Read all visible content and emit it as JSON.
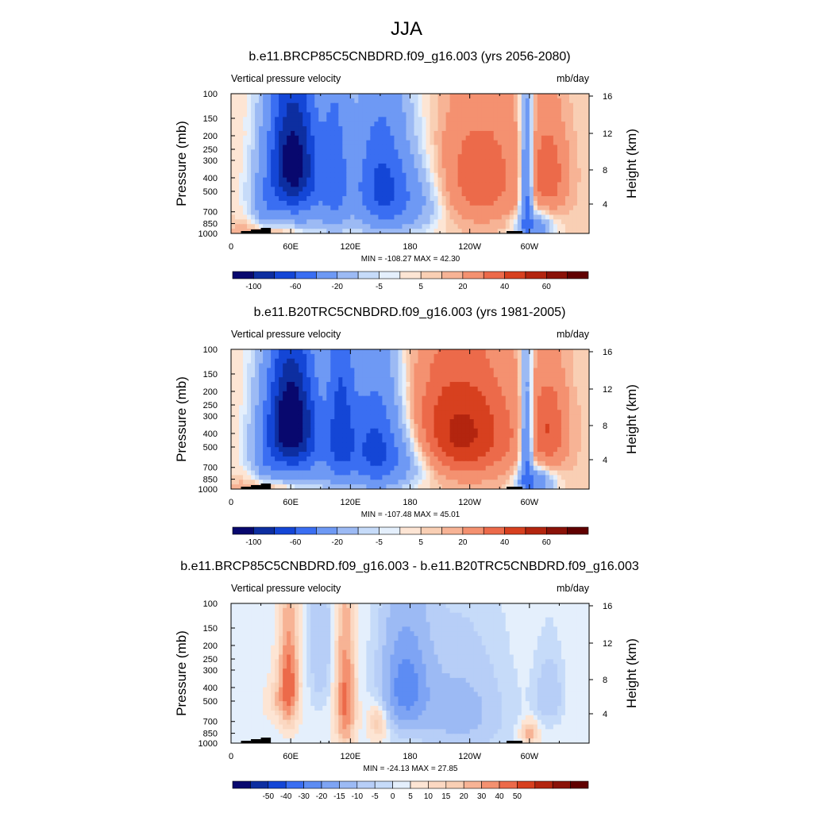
{
  "title": "JJA",
  "chart_data": [
    {
      "type": "heatmap",
      "title": "b.e11.BRCP85C5CNBDRD.f09_g16.003 (yrs 2056-2080)",
      "left_label": "Vertical pressure velocity",
      "right_label": "mb/day",
      "ylabel": "Pressure (mb)",
      "ylabel_right": "Height (km)",
      "x_ticks": [
        "0",
        "60E",
        "120E",
        "180",
        "120W",
        "60W"
      ],
      "y_ticks": [
        "100",
        "150",
        "200",
        "250",
        "300",
        "400",
        "500",
        "700",
        "850",
        "1000"
      ],
      "y_right_ticks": [
        "16",
        "12",
        "8",
        "4"
      ],
      "stats": "MIN = -108.27  MAX =  42.30",
      "colorbar_labels": [
        "-100",
        "-60",
        "-20",
        "-5",
        "5",
        "20",
        "40",
        "60"
      ],
      "colorbar_colors": [
        "#08086e",
        "#0d2ea0",
        "#1446d6",
        "#3a6ef2",
        "#6e99f4",
        "#9cbaf4",
        "#c6dbf9",
        "#e4effc",
        "#fde5d4",
        "#f9cfb4",
        "#f7b395",
        "#f49170",
        "#ec6a4a",
        "#d7401f",
        "#b3250f",
        "#8a1208",
        "#600000"
      ],
      "features": [
        {
          "lon": 40,
          "lev": 1000,
          "w": 32,
          "h": 220,
          "v": 16
        },
        {
          "lon": 35,
          "lev": 700,
          "w": 12,
          "h": 260,
          "v": -18
        },
        {
          "lon": 62,
          "lev": 280,
          "w": 24,
          "h": 300,
          "v": -95
        },
        {
          "lon": 65,
          "lev": 550,
          "w": 40,
          "h": 420,
          "v": -38
        },
        {
          "lon": 105,
          "lev": 350,
          "w": 14,
          "h": 500,
          "v": -40
        },
        {
          "lon": 150,
          "lev": 450,
          "w": 28,
          "h": 450,
          "v": -65
        },
        {
          "lon": 185,
          "lev": 600,
          "w": 30,
          "h": 350,
          "v": -25
        },
        {
          "lon": 250,
          "lev": 400,
          "w": 45,
          "h": 380,
          "v": 24
        },
        {
          "lon": 297,
          "lev": 500,
          "w": 6,
          "h": 500,
          "v": -55
        },
        {
          "lon": 305,
          "lev": 900,
          "w": 18,
          "h": 200,
          "v": -35
        },
        {
          "lon": 320,
          "lev": 380,
          "w": 18,
          "h": 300,
          "v": 22
        }
      ],
      "topography": [
        [
          10,
          20
        ],
        [
          20,
          30
        ],
        [
          30,
          40
        ],
        [
          98,
          99
        ],
        [
          277,
          293
        ]
      ]
    },
    {
      "type": "heatmap",
      "title": "b.e11.B20TRC5CNBDRD.f09_g16.003 (yrs 1981-2005)",
      "left_label": "Vertical pressure velocity",
      "right_label": "mb/day",
      "ylabel": "Pressure (mb)",
      "ylabel_right": "Height (km)",
      "x_ticks": [
        "0",
        "60E",
        "120E",
        "180",
        "120W",
        "60W"
      ],
      "y_ticks": [
        "100",
        "150",
        "200",
        "250",
        "300",
        "400",
        "500",
        "700",
        "850",
        "1000"
      ],
      "y_right_ticks": [
        "16",
        "12",
        "8",
        "4"
      ],
      "stats": "MIN = -107.48  MAX =  45.01",
      "colorbar_labels": [
        "-100",
        "-60",
        "-20",
        "-5",
        "5",
        "20",
        "40",
        "60"
      ],
      "colorbar_colors": [
        "#08086e",
        "#0d2ea0",
        "#1446d6",
        "#3a6ef2",
        "#6e99f4",
        "#9cbaf4",
        "#c6dbf9",
        "#e4effc",
        "#fde5d4",
        "#f9cfb4",
        "#f7b395",
        "#f49170",
        "#ec6a4a",
        "#d7401f",
        "#b3250f",
        "#8a1208",
        "#600000"
      ],
      "features": [
        {
          "lon": 40,
          "lev": 1000,
          "w": 32,
          "h": 220,
          "v": 16
        },
        {
          "lon": 35,
          "lev": 700,
          "w": 12,
          "h": 260,
          "v": -15
        },
        {
          "lon": 60,
          "lev": 300,
          "w": 24,
          "h": 300,
          "v": -100
        },
        {
          "lon": 65,
          "lev": 550,
          "w": 40,
          "h": 420,
          "v": -45
        },
        {
          "lon": 110,
          "lev": 350,
          "w": 14,
          "h": 500,
          "v": -55
        },
        {
          "lon": 145,
          "lev": 500,
          "w": 28,
          "h": 450,
          "v": -70
        },
        {
          "lon": 180,
          "lev": 650,
          "w": 30,
          "h": 300,
          "v": -20
        },
        {
          "lon": 230,
          "lev": 400,
          "w": 55,
          "h": 380,
          "v": 40
        },
        {
          "lon": 297,
          "lev": 500,
          "w": 6,
          "h": 500,
          "v": -50
        },
        {
          "lon": 305,
          "lev": 900,
          "w": 18,
          "h": 200,
          "v": -40
        },
        {
          "lon": 320,
          "lev": 380,
          "w": 18,
          "h": 300,
          "v": 24
        }
      ],
      "topography": [
        [
          10,
          20
        ],
        [
          20,
          30
        ],
        [
          30,
          40
        ],
        [
          98,
          99
        ],
        [
          277,
          293
        ]
      ]
    },
    {
      "type": "heatmap",
      "title": "b.e11.BRCP85C5CNBDRD.f09_g16.003 - b.e11.B20TRC5CNBDRD.f09_g16.003",
      "left_label": "Vertical pressure velocity",
      "right_label": "mb/day",
      "ylabel": "Pressure (mb)",
      "ylabel_right": "Height (km)",
      "x_ticks": [
        "0",
        "60E",
        "120E",
        "180",
        "120W",
        "60W"
      ],
      "y_ticks": [
        "100",
        "150",
        "200",
        "250",
        "300",
        "400",
        "500",
        "700",
        "850",
        "1000"
      ],
      "y_right_ticks": [
        "16",
        "12",
        "8",
        "4"
      ],
      "stats": "MIN = -24.13  MAX =  27.85",
      "colorbar_labels": [
        "-50",
        "-40",
        "-30",
        "-20",
        "-15",
        "-10",
        "-5",
        "0",
        "5",
        "10",
        "15",
        "20",
        "30",
        "40",
        "50"
      ],
      "colorbar_colors": [
        "#08086e",
        "#0d2ea0",
        "#1446d6",
        "#3a6ef2",
        "#5d8cf3",
        "#7ea4f4",
        "#9cbaf4",
        "#b7cef7",
        "#c6dbf9",
        "#e4effc",
        "#fde5d4",
        "#fbd8c2",
        "#f9cfb4",
        "#f7b395",
        "#f49170",
        "#ec6a4a",
        "#d7401f",
        "#b3250f",
        "#8a1208",
        "#600000"
      ],
      "features": [
        {
          "lon": 58,
          "lev": 380,
          "w": 9,
          "h": 300,
          "v": 24
        },
        {
          "lon": 115,
          "lev": 500,
          "w": 9,
          "h": 450,
          "v": 21
        },
        {
          "lon": 148,
          "lev": 700,
          "w": 9,
          "h": 200,
          "v": 10
        },
        {
          "lon": 175,
          "lev": 400,
          "w": 24,
          "h": 350,
          "v": -18
        },
        {
          "lon": 230,
          "lev": 600,
          "w": 45,
          "h": 500,
          "v": -8
        },
        {
          "lon": 45,
          "lev": 500,
          "w": 9,
          "h": 150,
          "v": 6
        },
        {
          "lon": 90,
          "lev": 200,
          "w": 12,
          "h": 300,
          "v": -6
        },
        {
          "lon": 300,
          "lev": 850,
          "w": 8,
          "h": 150,
          "v": 12
        },
        {
          "lon": 320,
          "lev": 450,
          "w": 14,
          "h": 250,
          "v": -6
        }
      ],
      "topography": [
        [
          10,
          20
        ],
        [
          20,
          30
        ],
        [
          30,
          40
        ],
        [
          98,
          99
        ],
        [
          277,
          293
        ]
      ]
    }
  ]
}
